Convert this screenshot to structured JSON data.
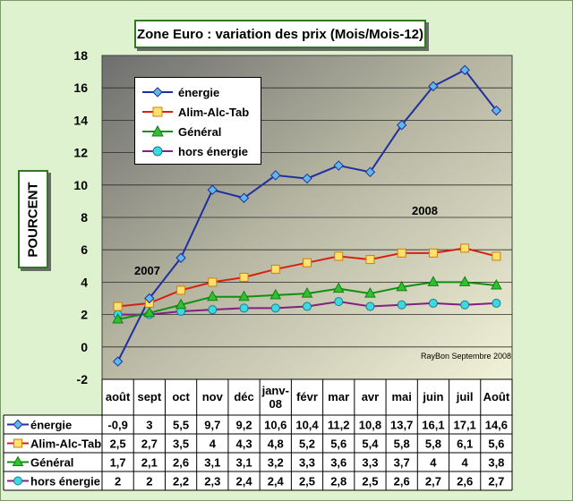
{
  "chart_data": {
    "type": "line",
    "title": "Zone Euro : variation des prix (Mois/Mois-12)",
    "ylabel": "POURCENT",
    "ylim": [
      -2,
      18
    ],
    "yticks": [
      "-2",
      "0",
      "2",
      "4",
      "6",
      "8",
      "10",
      "12",
      "14",
      "16",
      "18"
    ],
    "grid": true,
    "legend_position": "top-left",
    "categories": [
      "août",
      "sept",
      "oct",
      "nov",
      "déc",
      "janv-08",
      "févr",
      "mar",
      "avr",
      "mai",
      "juin",
      "juil",
      "Août"
    ],
    "series": [
      {
        "name": "énergie",
        "color": "#1f2fa0",
        "marker": "diamond",
        "values": [
          -0.9,
          3,
          5.5,
          9.7,
          9.2,
          10.6,
          10.4,
          11.2,
          10.8,
          13.7,
          16.1,
          17.1,
          14.6
        ],
        "labels": [
          "-0,9",
          "3",
          "5,5",
          "9,7",
          "9,2",
          "10,6",
          "10,4",
          "11,2",
          "10,8",
          "13,7",
          "16,1",
          "17,1",
          "14,6"
        ]
      },
      {
        "name": "Alim-Alc-Tab",
        "color": "#d82010",
        "marker": "square",
        "values": [
          2.5,
          2.7,
          3.5,
          4,
          4.3,
          4.8,
          5.2,
          5.6,
          5.4,
          5.8,
          5.8,
          6.1,
          5.6
        ],
        "labels": [
          "2,5",
          "2,7",
          "3,5",
          "4",
          "4,3",
          "4,8",
          "5,2",
          "5,6",
          "5,4",
          "5,8",
          "5,8",
          "6,1",
          "5,6"
        ]
      },
      {
        "name": "Général",
        "color": "#109010",
        "marker": "triangle",
        "values": [
          1.7,
          2.1,
          2.6,
          3.1,
          3.1,
          3.2,
          3.3,
          3.6,
          3.3,
          3.7,
          4,
          4,
          3.8
        ],
        "labels": [
          "1,7",
          "2,1",
          "2,6",
          "3,1",
          "3,1",
          "3,2",
          "3,3",
          "3,6",
          "3,3",
          "3,7",
          "4",
          "4",
          "3,8"
        ]
      },
      {
        "name": "hors énergie",
        "color": "#802080",
        "marker": "circle",
        "values": [
          2,
          2,
          2.2,
          2.3,
          2.4,
          2.4,
          2.5,
          2.8,
          2.5,
          2.6,
          2.7,
          2.6,
          2.7
        ],
        "labels": [
          "2",
          "2",
          "2,2",
          "2,3",
          "2,4",
          "2,4",
          "2,5",
          "2,8",
          "2,5",
          "2,6",
          "2,7",
          "2,6",
          "2,7"
        ]
      }
    ],
    "annotations": {
      "year_2007": "2007",
      "year_2008": "2008",
      "credit": "RayBon Septembre 2008"
    }
  }
}
